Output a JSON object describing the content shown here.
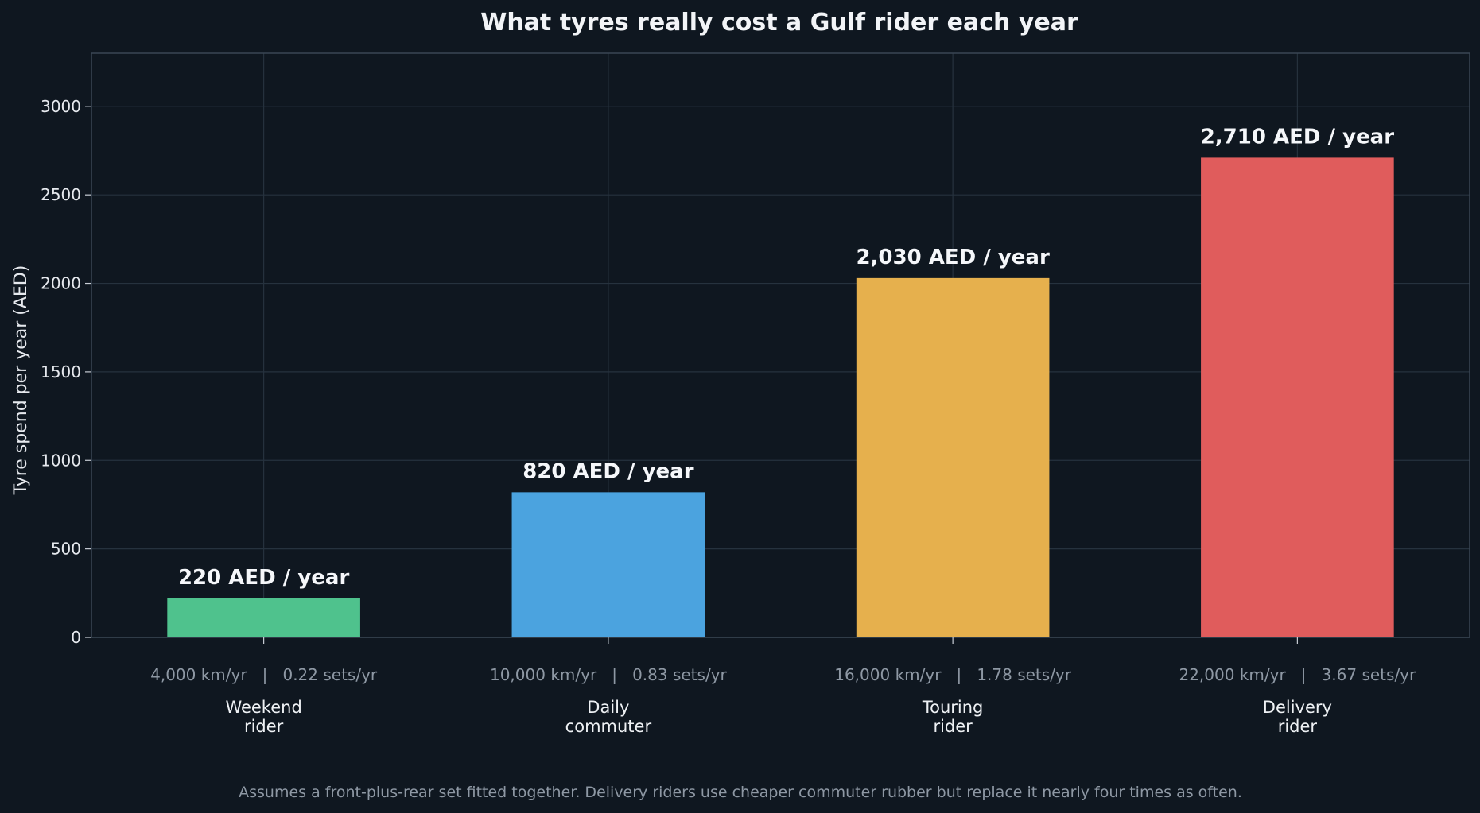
{
  "chart_data": {
    "type": "bar",
    "title": "What tyres really cost a Gulf rider each year",
    "ylabel": "Tyre spend per year (AED)",
    "xlabel": "",
    "ylim": [
      0,
      3300
    ],
    "yticks": [
      0,
      500,
      1000,
      1500,
      2000,
      2500,
      3000
    ],
    "grid": true,
    "categories": [
      {
        "lines": [
          "Weekend",
          "rider"
        ],
        "usage": "4,000 km/yr   |   0.22 sets/yr"
      },
      {
        "lines": [
          "Daily",
          "commuter"
        ],
        "usage": "10,000 km/yr   |   0.83 sets/yr"
      },
      {
        "lines": [
          "Touring",
          "rider"
        ],
        "usage": "16,000 km/yr   |   1.78 sets/yr"
      },
      {
        "lines": [
          "Delivery",
          "rider"
        ],
        "usage": "22,000 km/yr   |   3.67 sets/yr"
      }
    ],
    "values": [
      220,
      820,
      2030,
      2710
    ],
    "value_labels": [
      "220 AED / year",
      "820 AED / year",
      "2,030 AED / year",
      "2,710 AED / year"
    ],
    "colors": [
      "#4fc28d",
      "#4ba3df",
      "#e6b04d",
      "#e05c5c"
    ],
    "footnote": "Assumes a front-plus-rear set fitted together. Delivery riders use cheaper commuter rubber but replace it nearly four times as often."
  },
  "theme": {
    "background": "#0f1720",
    "grid": "#26323e",
    "axis": "#3a4654"
  }
}
